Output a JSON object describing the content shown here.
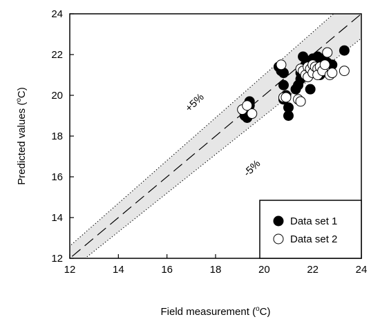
{
  "chart_data": {
    "type": "scatter",
    "xlabel": "Field measurement (",
    "xlabel_sup": "o",
    "xlabel_unit": "C)",
    "ylabel": "Predicted values (",
    "ylabel_sup": "o",
    "ylabel_unit": "C)",
    "xlim": [
      12,
      24
    ],
    "ylim": [
      12,
      24
    ],
    "xticks": [
      "12",
      "14",
      "16",
      "18",
      "20",
      "22",
      "24"
    ],
    "yticks": [
      "12",
      "14",
      "16",
      "18",
      "20",
      "22",
      "24"
    ],
    "band_upper_label": "+5%",
    "band_lower_label": "-5%",
    "band_percent": 5,
    "band_color": "#e6e6e6",
    "legend_position": "bottom-right",
    "series": [
      {
        "name": "Data set 1",
        "fill": "#000000",
        "points": [
          [
            19.2,
            19.0
          ],
          [
            19.3,
            18.9
          ],
          [
            19.4,
            19.5
          ],
          [
            19.4,
            19.7
          ],
          [
            20.6,
            21.4
          ],
          [
            20.7,
            21.2
          ],
          [
            20.8,
            21.1
          ],
          [
            20.8,
            20.5
          ],
          [
            20.8,
            19.8
          ],
          [
            20.9,
            20.0
          ],
          [
            21.0,
            19.0
          ],
          [
            21.0,
            19.4
          ],
          [
            21.3,
            20.3
          ],
          [
            21.4,
            20.5
          ],
          [
            21.5,
            20.8
          ],
          [
            21.5,
            21.1
          ],
          [
            21.6,
            21.9
          ],
          [
            21.7,
            21.5
          ],
          [
            21.8,
            21.3
          ],
          [
            21.9,
            20.3
          ],
          [
            21.9,
            21.7
          ],
          [
            22.0,
            21.8
          ],
          [
            22.0,
            21.2
          ],
          [
            22.1,
            21.6
          ],
          [
            22.2,
            21.9
          ],
          [
            22.3,
            21.0
          ],
          [
            22.4,
            21.8
          ],
          [
            22.5,
            21.7
          ],
          [
            22.6,
            21.6
          ],
          [
            22.8,
            21.5
          ],
          [
            23.3,
            22.2
          ]
        ]
      },
      {
        "name": "Data set 2",
        "fill": "#ffffff",
        "points": [
          [
            19.1,
            19.3
          ],
          [
            19.3,
            19.5
          ],
          [
            19.5,
            19.1
          ],
          [
            20.7,
            21.5
          ],
          [
            20.8,
            19.9
          ],
          [
            20.9,
            19.9
          ],
          [
            21.4,
            19.8
          ],
          [
            21.5,
            19.7
          ],
          [
            21.5,
            21.3
          ],
          [
            21.6,
            21.2
          ],
          [
            21.7,
            21.0
          ],
          [
            21.8,
            21.4
          ],
          [
            21.8,
            20.9
          ],
          [
            21.9,
            21.3
          ],
          [
            22.0,
            21.5
          ],
          [
            22.0,
            21.1
          ],
          [
            22.1,
            21.4
          ],
          [
            22.2,
            21.3
          ],
          [
            22.2,
            21.0
          ],
          [
            22.3,
            21.4
          ],
          [
            22.4,
            21.2
          ],
          [
            22.5,
            21.5
          ],
          [
            22.6,
            22.1
          ],
          [
            22.7,
            21.0
          ],
          [
            22.8,
            21.1
          ],
          [
            23.3,
            21.2
          ]
        ]
      }
    ]
  }
}
